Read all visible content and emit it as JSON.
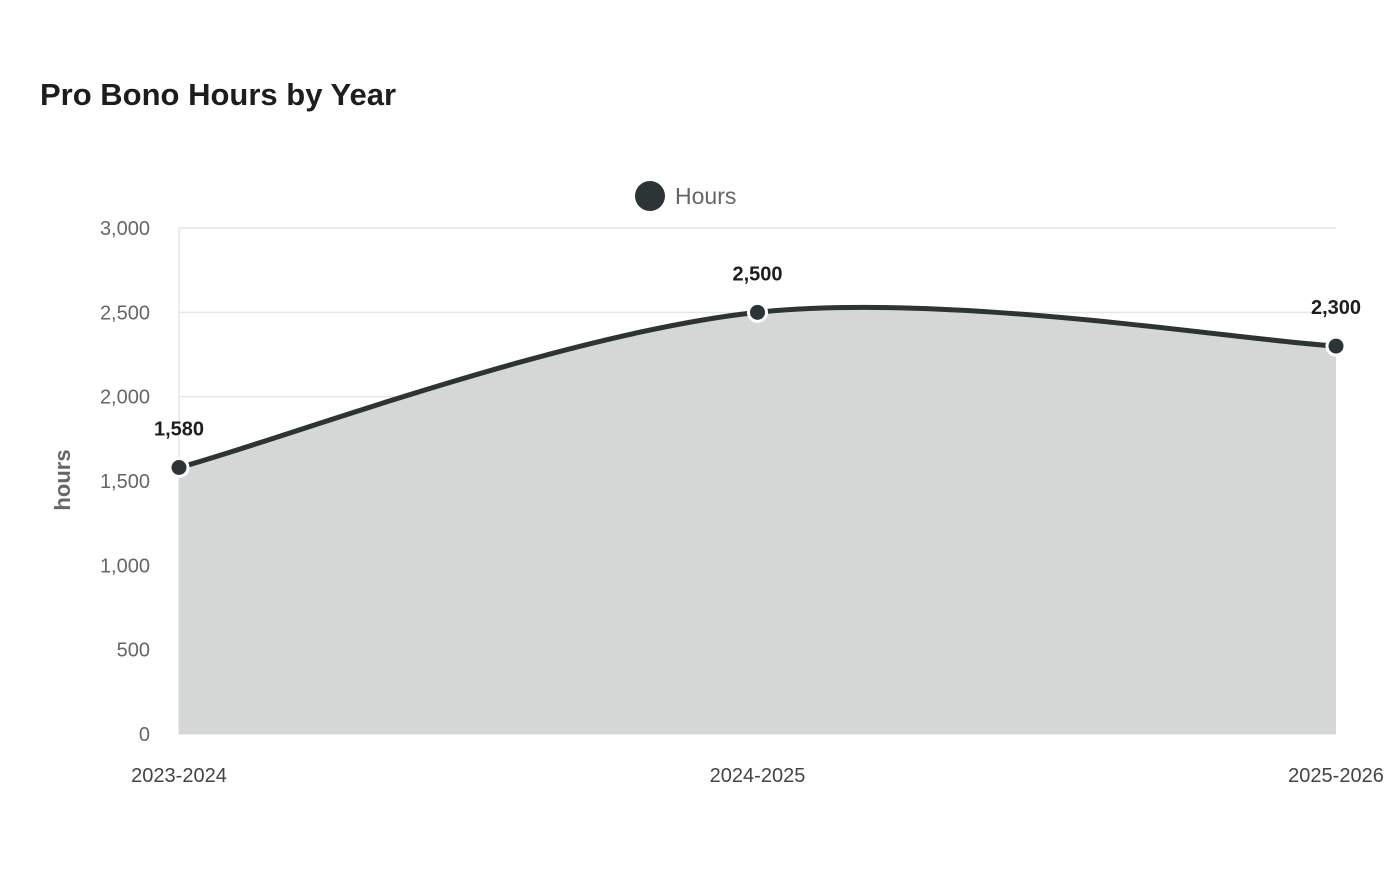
{
  "chart_data": {
    "type": "area",
    "title": "Pro Bono Hours by Year",
    "xlabel": "",
    "ylabel": "hours",
    "categories": [
      "2023-2024",
      "2024-2025",
      "2025-2026"
    ],
    "series": [
      {
        "name": "Hours",
        "values": [
          1580,
          2500,
          2300
        ],
        "labels": [
          "1,580",
          "2,500",
          "2,300"
        ]
      }
    ],
    "ylim": [
      0,
      3000
    ],
    "yticks": [
      0,
      500,
      1000,
      1500,
      2000,
      2500,
      3000
    ],
    "ytick_labels": [
      "0",
      "500",
      "1,000",
      "1,500",
      "2,000",
      "2,500",
      "3,000"
    ],
    "grid": true,
    "legend": "top-center",
    "colors": {
      "line": "#2d3436",
      "fill": "#d5d7d7",
      "grid": "#e6e6e6"
    }
  }
}
